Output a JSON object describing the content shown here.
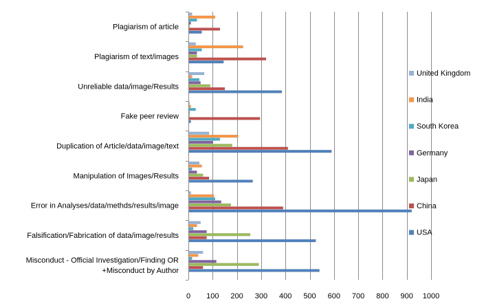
{
  "chart_data": {
    "type": "bar",
    "orientation": "horizontal",
    "title": "",
    "xlabel": "",
    "ylabel": "",
    "xlim": [
      0,
      1000
    ],
    "x_ticks": [
      0,
      100,
      200,
      300,
      400,
      500,
      600,
      700,
      800,
      900,
      1000
    ],
    "grid": true,
    "legend_position": "right",
    "categories": [
      "Plagiarism of article",
      "Plagiarism of text/images",
      "Unreliable data/image/Results",
      "Fake peer review",
      "Duplication of Article/data/image/text",
      "Manipulation of Images/Results",
      "Error in Analyses/data/methds/results/image",
      "Falsification/Fabrication  of data/image/results",
      "Misconduct -  Official Investigation/Finding OR +Misconduct by Author"
    ],
    "category_display_lines": [
      [
        "Plagiarism of article"
      ],
      [
        "Plagiarism of text/images"
      ],
      [
        "Unreliable data/image/Results"
      ],
      [
        "Fake peer review"
      ],
      [
        "Duplication of Article/data/image/text"
      ],
      [
        "Manipulation of Images/Results"
      ],
      [
        "Error in Analyses/data/methds/results/image"
      ],
      [
        "Falsification/Fabrication  of data/image/results"
      ],
      [
        "Misconduct -  Official Investigation/Finding OR",
        "+Misconduct by Author"
      ]
    ],
    "series": [
      {
        "name": "United Kingdom",
        "color": "#95B3D7",
        "values": [
          15,
          30,
          65,
          5,
          85,
          45,
          10,
          50,
          60
        ]
      },
      {
        "name": "India",
        "color": "#F79646",
        "values": [
          110,
          225,
          15,
          10,
          205,
          55,
          105,
          35,
          40
        ]
      },
      {
        "name": "South Korea",
        "color": "#4BACC6",
        "values": [
          35,
          55,
          45,
          30,
          130,
          15,
          110,
          20,
          15
        ]
      },
      {
        "name": "Germany",
        "color": "#8064A2",
        "values": [
          10,
          35,
          50,
          5,
          100,
          35,
          135,
          75,
          115
        ]
      },
      {
        "name": "Japan",
        "color": "#9BBB59",
        "values": [
          5,
          35,
          90,
          5,
          180,
          60,
          175,
          255,
          290
        ]
      },
      {
        "name": "China",
        "color": "#C0504D",
        "values": [
          130,
          320,
          150,
          295,
          410,
          85,
          390,
          75,
          60
        ]
      },
      {
        "name": "USA",
        "color": "#4F81BD",
        "values": [
          55,
          145,
          385,
          10,
          590,
          265,
          920,
          525,
          540
        ]
      }
    ]
  }
}
